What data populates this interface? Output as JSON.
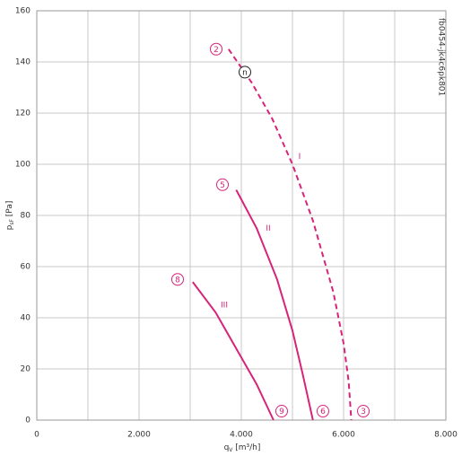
{
  "chart_data": {
    "type": "line",
    "ylabel": {
      "main": "p",
      "sub": "sF",
      "unit": " [Pa]"
    },
    "xlabel": {
      "main": "q",
      "sub": "V",
      "unit": " [m³/h]"
    },
    "side_text": "fb0454-jk4c6pk801",
    "xlim": [
      0,
      8000
    ],
    "ylim": [
      0,
      160
    ],
    "xticks": [
      0,
      {
        "value": 2000,
        "label": "2.000"
      },
      {
        "value": 4000,
        "label": "4.000"
      },
      {
        "value": 6000,
        "label": "6.000"
      },
      {
        "value": 8000,
        "label": "8.000"
      }
    ],
    "xminor": [
      1000,
      3000,
      5000,
      7000
    ],
    "yticks": [
      0,
      20,
      40,
      60,
      80,
      100,
      120,
      140,
      160
    ],
    "grid": true,
    "series": [
      {
        "name": "I",
        "color": "#d6247a",
        "dash": true,
        "x": [
          3750,
          4200,
          4600,
          5000,
          5400,
          5800,
          6000,
          6100,
          6150
        ],
        "values": [
          145,
          132,
          118,
          100,
          78,
          50,
          30,
          15,
          0
        ]
      },
      {
        "name": "II",
        "color": "#d6247a",
        "dash": false,
        "x": [
          3900,
          4300,
          4700,
          5000,
          5200,
          5400
        ],
        "values": [
          90,
          75,
          55,
          35,
          18,
          0
        ]
      },
      {
        "name": "III",
        "color": "#d6247a",
        "dash": false,
        "x": [
          3050,
          3500,
          3900,
          4300,
          4630
        ],
        "values": [
          54,
          42,
          28,
          14,
          0
        ]
      }
    ],
    "series_labels": [
      {
        "text": "I",
        "x": 5140,
        "y": 103
      },
      {
        "text": "II",
        "x": 4526,
        "y": 75
      },
      {
        "text": "III",
        "x": 3667,
        "y": 45
      }
    ],
    "markers": [
      {
        "text": "2",
        "x": 3509,
        "y": 145,
        "color": "#d6247a"
      },
      {
        "text": "n",
        "x": 4070,
        "y": 136,
        "color": "#222222"
      },
      {
        "text": "5",
        "x": 3632,
        "y": 92,
        "color": "#d6247a"
      },
      {
        "text": "8",
        "x": 2754,
        "y": 55,
        "color": "#d6247a"
      },
      {
        "text": "9",
        "x": 4789,
        "y": 3.5,
        "color": "#d6247a"
      },
      {
        "text": "6",
        "x": 5596,
        "y": 3.5,
        "color": "#d6247a"
      },
      {
        "text": "3",
        "x": 6386,
        "y": 3.5,
        "color": "#d6247a"
      }
    ]
  }
}
